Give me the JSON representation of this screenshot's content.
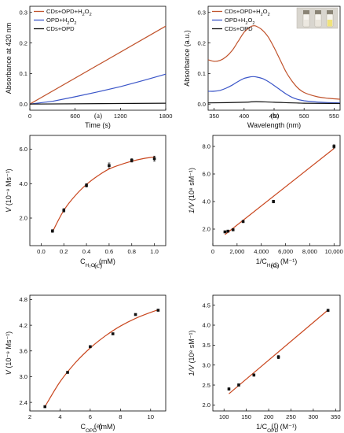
{
  "chart_data": [
    {
      "panel": "(a)",
      "type": "line",
      "xlabel": "Time (s)",
      "ylabel": "Absorbance at 420 nm",
      "xlim": [
        0,
        1800
      ],
      "ylim": [
        -0.02,
        0.32
      ],
      "xticks": [
        "0",
        "600",
        "1200",
        "1800"
      ],
      "yticks": [
        "0.0",
        "0.1",
        "0.2",
        "0.3"
      ],
      "legend": "top-left",
      "series": [
        {
          "name": "CDs+OPD+H2O2",
          "color": "#c0522b",
          "x": [
            0,
            1800
          ],
          "y": [
            0.0,
            0.255
          ]
        },
        {
          "name": "OPD+H2O2",
          "color": "#3a55c8",
          "x": [
            0,
            300,
            600,
            900,
            1200,
            1500,
            1800
          ],
          "y": [
            0.0,
            0.009,
            0.024,
            0.04,
            0.057,
            0.077,
            0.098
          ]
        },
        {
          "name": "CDs+OPD",
          "color": "#111111",
          "x": [
            0,
            1800
          ],
          "y": [
            0.0,
            0.003
          ]
        }
      ]
    },
    {
      "panel": "(b)",
      "type": "line",
      "xlabel": "Wavelength (nm)",
      "ylabel": "Absorbance (a.u.)",
      "xlim": [
        340,
        560
      ],
      "ylim": [
        -0.02,
        0.32
      ],
      "xticks": [
        "350",
        "400",
        "450",
        "500",
        "550"
      ],
      "yticks": [
        "0.0",
        "0.1",
        "0.2",
        "0.3"
      ],
      "legend": "top-left",
      "inset": "photo-of-vials",
      "series": [
        {
          "name": "CDs+OPD+H2O2",
          "color": "#c0522b",
          "x": [
            340,
            350,
            360,
            370,
            380,
            390,
            400,
            410,
            415,
            420,
            430,
            440,
            450,
            460,
            470,
            480,
            490,
            500,
            520,
            540,
            560
          ],
          "y": [
            0.145,
            0.14,
            0.143,
            0.155,
            0.175,
            0.205,
            0.235,
            0.252,
            0.256,
            0.255,
            0.243,
            0.22,
            0.185,
            0.145,
            0.105,
            0.075,
            0.052,
            0.038,
            0.025,
            0.019,
            0.016
          ]
        },
        {
          "name": "OPD+H2O2",
          "color": "#3a55c8",
          "x": [
            340,
            350,
            360,
            370,
            380,
            390,
            400,
            410,
            415,
            420,
            430,
            440,
            450,
            460,
            470,
            480,
            490,
            500,
            520,
            540,
            560
          ],
          "y": [
            0.042,
            0.042,
            0.045,
            0.052,
            0.062,
            0.074,
            0.084,
            0.089,
            0.09,
            0.089,
            0.084,
            0.074,
            0.061,
            0.047,
            0.033,
            0.022,
            0.015,
            0.011,
            0.007,
            0.005,
            0.004
          ]
        },
        {
          "name": "CDs+OPD",
          "color": "#111111",
          "x": [
            340,
            400,
            420,
            450,
            500,
            560
          ],
          "y": [
            0.004,
            0.006,
            0.008,
            0.006,
            0.003,
            0.002
          ]
        }
      ]
    },
    {
      "panel": "(c)",
      "type": "scatter",
      "xlabel": "C",
      "xlabel_sub": "H₂O₂",
      "xlabel_unit": " (mM)",
      "ylabel_var": "V",
      "ylabel_unit": " (10⁻⁹ Ms⁻¹)",
      "xlim": [
        -0.1,
        1.1
      ],
      "ylim": [
        0.4,
        6.8
      ],
      "xticks": [
        "0.0",
        "0.2",
        "0.4",
        "0.6",
        "0.8",
        "1.0"
      ],
      "yticks": [
        "2.0",
        "4.0",
        "6.0"
      ],
      "points": {
        "x": [
          0.1,
          0.2,
          0.4,
          0.6,
          0.8,
          1.0
        ],
        "y": [
          1.25,
          2.45,
          3.9,
          5.05,
          5.35,
          5.45
        ],
        "err": [
          0.08,
          0.1,
          0.1,
          0.15,
          0.1,
          0.15
        ]
      },
      "fit": {
        "type": "curve",
        "x": [
          0.1,
          0.2,
          0.3,
          0.4,
          0.5,
          0.6,
          0.7,
          0.8,
          0.9,
          1.0
        ],
        "y": [
          1.2,
          2.45,
          3.3,
          3.95,
          4.45,
          4.85,
          5.1,
          5.3,
          5.45,
          5.55
        ]
      }
    },
    {
      "panel": "(d)",
      "type": "scatter",
      "xlabel": "1/C",
      "xlabel_sub": "H₂O₂",
      "xlabel_unit": " (M⁻¹)",
      "ylabel_var": "1/V",
      "ylabel_unit": " (10⁸ sM⁻¹)",
      "xlim": [
        0,
        10500
      ],
      "ylim": [
        0.8,
        8.8
      ],
      "xticks": [
        "0",
        "2,000",
        "4,000",
        "6,000",
        "8,000",
        "10,000"
      ],
      "yticks": [
        "2.0",
        "4.0",
        "6.0",
        "8.0"
      ],
      "points": {
        "x": [
          1000,
          1250,
          1667,
          2500,
          5000,
          10000
        ],
        "y": [
          1.8,
          1.85,
          1.95,
          2.55,
          4.0,
          8.0
        ],
        "err": [
          0.05,
          0.05,
          0.05,
          0.08,
          0.1,
          0.12
        ]
      },
      "fit": {
        "type": "line",
        "x": [
          1000,
          10000
        ],
        "y": [
          1.6,
          7.85
        ]
      }
    },
    {
      "panel": "(e)",
      "type": "scatter",
      "xlabel": "C",
      "xlabel_sub": "OPD",
      "xlabel_unit": " (mM)",
      "ylabel_var": "V",
      "ylabel_unit": " (10⁻⁹ Ms⁻¹)",
      "xlim": [
        2,
        11
      ],
      "ylim": [
        2.2,
        4.9
      ],
      "xticks": [
        "2",
        "4",
        "6",
        "8",
        "10"
      ],
      "yticks": [
        "2.4",
        "3.0",
        "3.6",
        "4.2",
        "4.8"
      ],
      "points": {
        "x": [
          3,
          4.5,
          6,
          7.5,
          9,
          10.5
        ],
        "y": [
          2.3,
          3.1,
          3.7,
          4.0,
          4.45,
          4.55
        ],
        "err": [
          0.02,
          0.02,
          0.02,
          0.02,
          0.02,
          0.02
        ]
      },
      "fit": {
        "type": "curve",
        "x": [
          3,
          4,
          5,
          6,
          7,
          8,
          9,
          10,
          10.5
        ],
        "y": [
          2.3,
          2.88,
          3.32,
          3.67,
          3.95,
          4.18,
          4.36,
          4.5,
          4.56
        ]
      }
    },
    {
      "panel": "(f)",
      "type": "scatter",
      "xlabel": "1/C",
      "xlabel_sub": "OPD",
      "xlabel_unit": " (M⁻¹)",
      "ylabel_var": "1/V",
      "ylabel_unit": " (10⁸ sM⁻¹)",
      "xlim": [
        75,
        360
      ],
      "ylim": [
        1.85,
        4.75
      ],
      "xticks": [
        "100",
        "150",
        "200",
        "250",
        "300",
        "350"
      ],
      "yticks": [
        "2.0",
        "2.5",
        "3.0",
        "3.5",
        "4.0",
        "4.5"
      ],
      "points": {
        "x": [
          111,
          133,
          167,
          222,
          333
        ],
        "y": [
          2.4,
          2.5,
          2.75,
          3.2,
          4.37
        ],
        "err": [
          0.03,
          0.03,
          0.03,
          0.04,
          0.03
        ]
      },
      "fit": {
        "type": "line",
        "x": [
          111,
          333
        ],
        "y": [
          2.28,
          4.38
        ]
      }
    }
  ]
}
